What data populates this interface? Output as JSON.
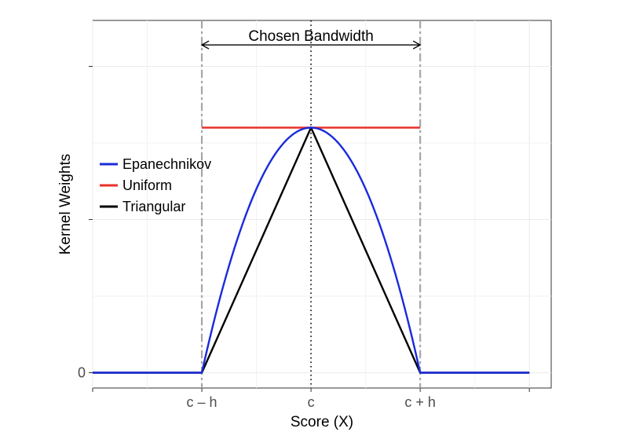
{
  "chart_data": {
    "type": "line",
    "xlabel": "Score (X)",
    "ylabel": "Kernel Weights",
    "x_ticks": [
      {
        "x": -1,
        "label": "c – h"
      },
      {
        "x": 0,
        "label": "c"
      },
      {
        "x": 1,
        "label": "c + h"
      }
    ],
    "y_ticks": [
      {
        "y": 0,
        "label": "0"
      },
      {
        "y": 0.5,
        "label": ""
      },
      {
        "y": 1.0,
        "label": ""
      }
    ],
    "xlim": [
      -2.0,
      2.2
    ],
    "ylim": [
      -0.05,
      1.15
    ],
    "grid": true,
    "legend_position": "left",
    "series": [
      {
        "name": "Epanechnikov",
        "color": "#1a2bdb",
        "kernel": "epanechnikov",
        "x": [
          -2,
          -1,
          -0.8,
          -0.6,
          -0.4,
          -0.2,
          0,
          0.2,
          0.4,
          0.6,
          0.8,
          1,
          2
        ],
        "y": [
          0,
          0,
          0.288,
          0.512,
          0.672,
          0.768,
          0.8,
          0.768,
          0.672,
          0.512,
          0.288,
          0,
          0
        ]
      },
      {
        "name": "Uniform",
        "color": "#e8312a",
        "kernel": "uniform",
        "x": [
          -1,
          1
        ],
        "y": [
          0.8,
          0.8
        ]
      },
      {
        "name": "Triangular",
        "color": "#000000",
        "kernel": "triangular",
        "x": [
          -2,
          -1,
          0,
          1,
          2
        ],
        "y": [
          0,
          0,
          0.8,
          0,
          0
        ]
      }
    ],
    "reference_lines": [
      {
        "x": -1,
        "style": "dashdot",
        "color": "#a6a6a6"
      },
      {
        "x": 1,
        "style": "dashdot",
        "color": "#a6a6a6"
      },
      {
        "x": 0,
        "style": "dotted",
        "color": "#000000"
      }
    ],
    "annotations": [
      {
        "text": "Chosen Bandwidth",
        "from_x": -1,
        "to_x": 1,
        "y": 1.07
      }
    ]
  }
}
